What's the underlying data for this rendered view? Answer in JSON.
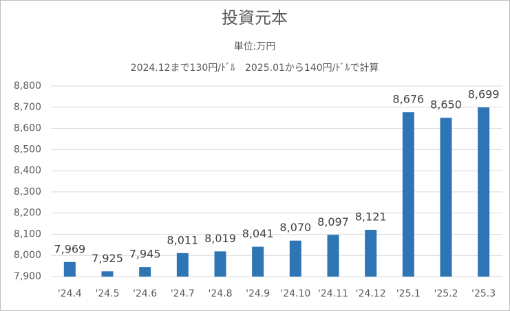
{
  "chart_data": {
    "type": "bar",
    "title": "投資元本",
    "subtitle": "単位:万円",
    "note": "2024.12まで130円/ﾄﾞﾙ　2025.01から140円/ﾄﾞﾙで計算",
    "categories": [
      "'24.4",
      "'24.5",
      "'24.6",
      "'24.7",
      "'24.8",
      "'24.9",
      "'24.10",
      "'24.11",
      "'24.12",
      "'25.1",
      "'25.2",
      "'25.3"
    ],
    "values": [
      7969,
      7925,
      7945,
      8011,
      8019,
      8041,
      8070,
      8097,
      8121,
      8676,
      8650,
      8699
    ],
    "value_labels": [
      "7,969",
      "7,925",
      "7,945",
      "8,011",
      "8,019",
      "8,041",
      "8,070",
      "8,097",
      "8,121",
      "8,676",
      "8,650",
      "8,699"
    ],
    "color": "#2e75b6",
    "ylim": [
      7900,
      8800
    ],
    "yticks": [
      {
        "value": 7900,
        "label": "7,900"
      },
      {
        "value": 8000,
        "label": "8,000"
      },
      {
        "value": 8100,
        "label": "8,100"
      },
      {
        "value": 8200,
        "label": "8,200"
      },
      {
        "value": 8300,
        "label": "8,300"
      },
      {
        "value": 8400,
        "label": "8,400"
      },
      {
        "value": 8500,
        "label": "8,500"
      },
      {
        "value": 8600,
        "label": "8,600"
      },
      {
        "value": 8700,
        "label": "8,700"
      },
      {
        "value": 8800,
        "label": "8,800"
      }
    ],
    "grid": true
  }
}
